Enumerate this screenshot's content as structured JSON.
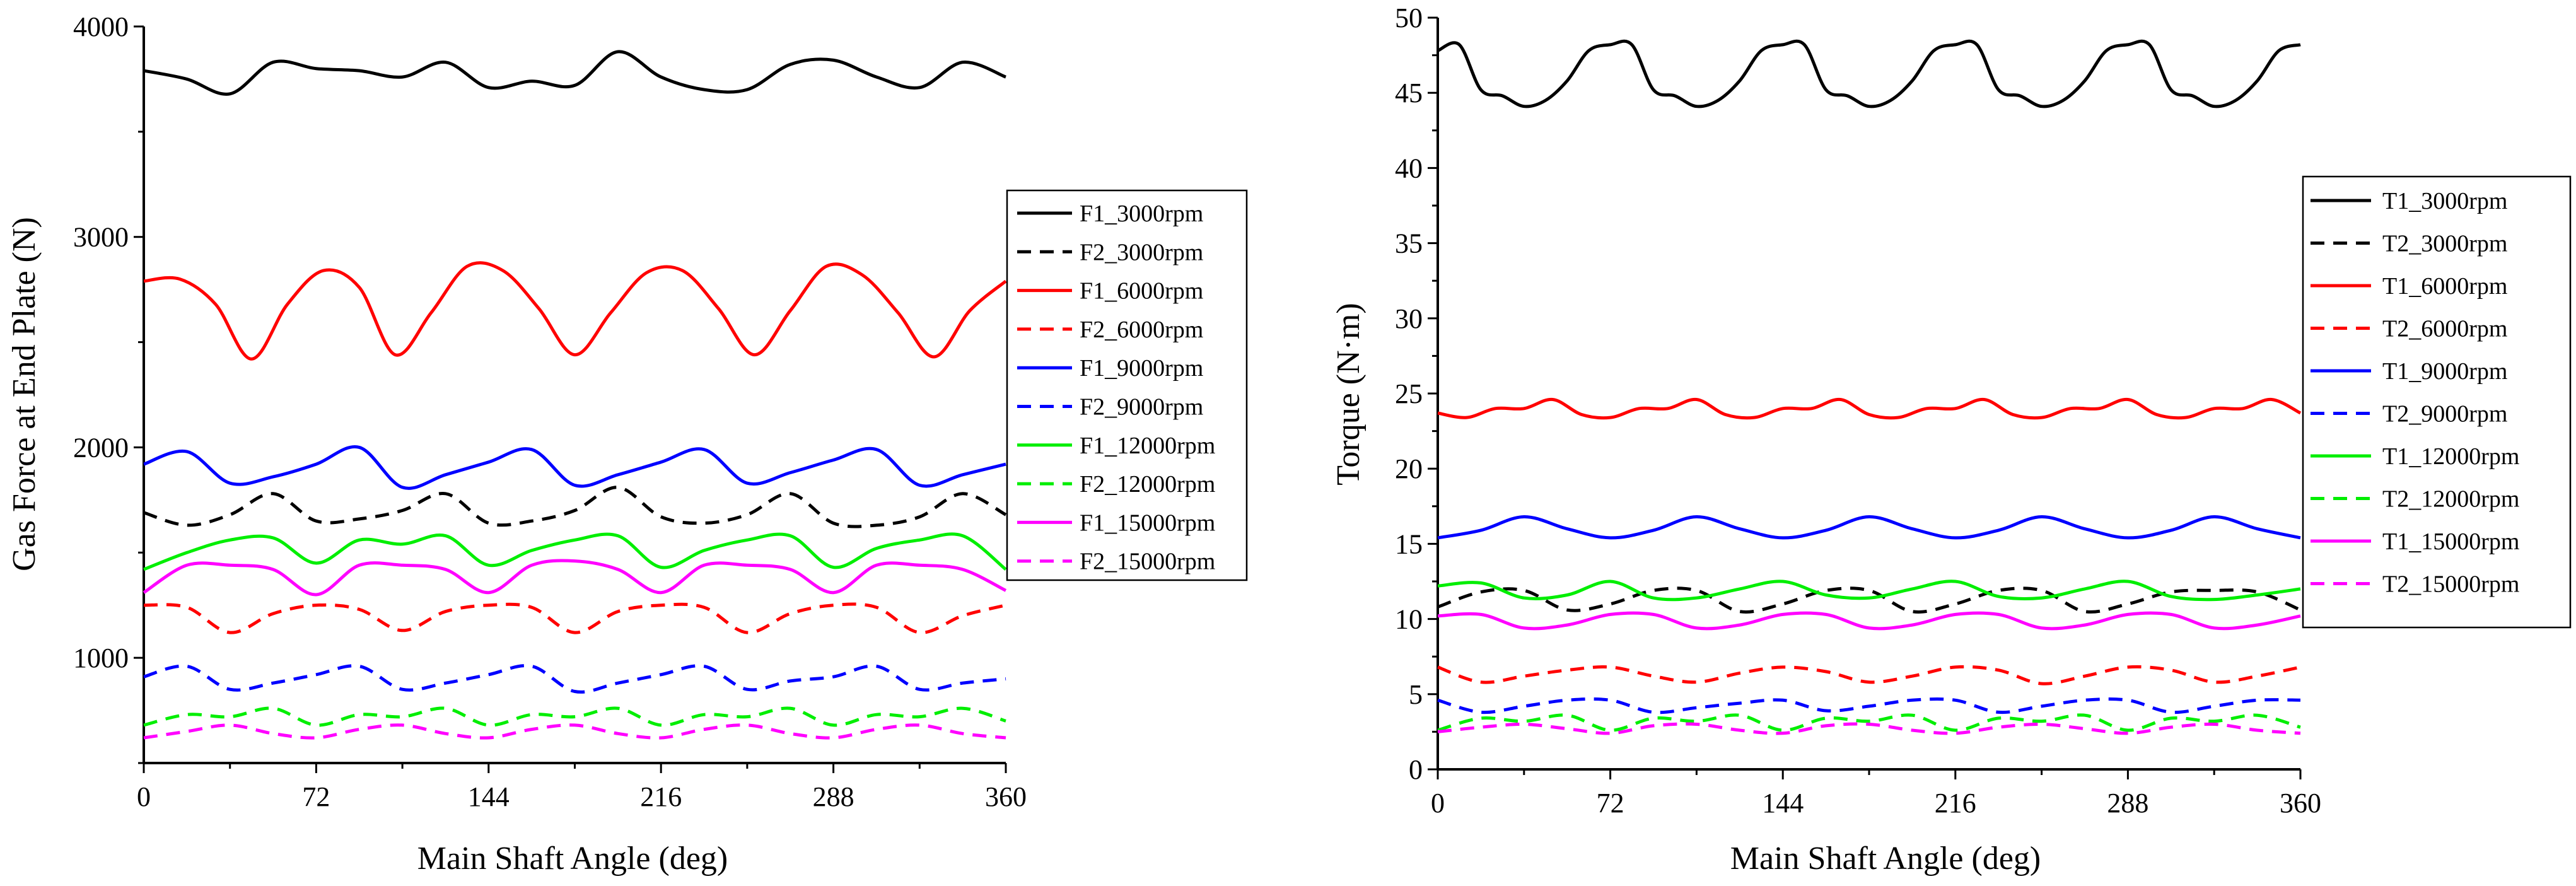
{
  "chart_data": [
    {
      "type": "line",
      "title": "",
      "xlabel": "Main Shaft Angle (deg)",
      "ylabel": "Gas Force at End Plate (N)",
      "xlim": [
        0,
        360
      ],
      "ylim": [
        500,
        4000
      ],
      "xticks": [
        0,
        72,
        144,
        216,
        288,
        360
      ],
      "yticks": [
        1000,
        2000,
        3000,
        4000
      ],
      "legend_position": "right",
      "series": [
        {
          "name": "F1_3000rpm",
          "color": "#000000",
          "dash": "solid",
          "x": [
            0,
            18,
            36,
            54,
            72,
            90,
            108,
            126,
            144,
            162,
            180,
            198,
            216,
            234,
            252,
            270,
            288,
            306,
            324,
            342,
            360
          ],
          "y": [
            3790,
            3750,
            3680,
            3830,
            3800,
            3790,
            3760,
            3830,
            3710,
            3740,
            3720,
            3880,
            3760,
            3700,
            3700,
            3820,
            3840,
            3760,
            3710,
            3830,
            3760
          ]
        },
        {
          "name": "F2_3000rpm",
          "color": "#000000",
          "dash": "dashed",
          "x": [
            0,
            18,
            36,
            54,
            72,
            90,
            108,
            126,
            144,
            162,
            180,
            198,
            216,
            234,
            252,
            270,
            288,
            306,
            324,
            342,
            360
          ],
          "y": [
            1690,
            1630,
            1680,
            1780,
            1650,
            1660,
            1700,
            1780,
            1640,
            1650,
            1700,
            1810,
            1670,
            1640,
            1680,
            1780,
            1640,
            1630,
            1670,
            1780,
            1680
          ]
        },
        {
          "name": "F1_6000rpm",
          "color": "#FF0000",
          "dash": "solid",
          "x": [
            0,
            15,
            30,
            45,
            60,
            75,
            90,
            105,
            120,
            135,
            150,
            165,
            180,
            195,
            210,
            225,
            240,
            255,
            270,
            285,
            300,
            315,
            330,
            345,
            360
          ],
          "y": [
            2790,
            2800,
            2680,
            2420,
            2680,
            2840,
            2760,
            2440,
            2640,
            2860,
            2840,
            2660,
            2440,
            2640,
            2830,
            2840,
            2660,
            2440,
            2650,
            2860,
            2820,
            2640,
            2430,
            2650,
            2790
          ]
        },
        {
          "name": "F2_6000rpm",
          "color": "#FF0000",
          "dash": "dashed",
          "x": [
            0,
            18,
            36,
            54,
            72,
            90,
            108,
            126,
            144,
            162,
            180,
            198,
            216,
            234,
            252,
            270,
            288,
            306,
            324,
            342,
            360
          ],
          "y": [
            1250,
            1240,
            1120,
            1210,
            1250,
            1230,
            1130,
            1220,
            1250,
            1240,
            1120,
            1220,
            1250,
            1240,
            1120,
            1210,
            1250,
            1240,
            1120,
            1200,
            1250
          ]
        },
        {
          "name": "F1_9000rpm",
          "color": "#0000FF",
          "dash": "solid",
          "x": [
            0,
            18,
            36,
            54,
            72,
            90,
            108,
            126,
            144,
            162,
            180,
            198,
            216,
            234,
            252,
            270,
            288,
            306,
            324,
            342,
            360
          ],
          "y": [
            1920,
            1980,
            1830,
            1860,
            1920,
            2000,
            1810,
            1870,
            1930,
            1990,
            1820,
            1870,
            1930,
            1990,
            1830,
            1880,
            1940,
            1990,
            1820,
            1870,
            1920
          ]
        },
        {
          "name": "F2_9000rpm",
          "color": "#0000FF",
          "dash": "dashed",
          "x": [
            0,
            18,
            36,
            54,
            72,
            90,
            108,
            126,
            144,
            162,
            180,
            198,
            216,
            234,
            252,
            270,
            288,
            306,
            324,
            342,
            360
          ],
          "y": [
            910,
            960,
            850,
            880,
            920,
            960,
            850,
            880,
            920,
            960,
            840,
            880,
            920,
            960,
            850,
            890,
            910,
            960,
            850,
            880,
            900
          ]
        },
        {
          "name": "F1_12000rpm",
          "color": "#00EE00",
          "dash": "solid",
          "x": [
            0,
            18,
            36,
            54,
            72,
            90,
            108,
            126,
            144,
            162,
            180,
            198,
            216,
            234,
            252,
            270,
            288,
            306,
            324,
            342,
            360
          ],
          "y": [
            1420,
            1500,
            1560,
            1570,
            1450,
            1560,
            1540,
            1580,
            1440,
            1510,
            1560,
            1580,
            1430,
            1510,
            1560,
            1580,
            1430,
            1520,
            1560,
            1580,
            1420
          ]
        },
        {
          "name": "F2_12000rpm",
          "color": "#00EE00",
          "dash": "dashed",
          "x": [
            0,
            18,
            36,
            54,
            72,
            90,
            108,
            126,
            144,
            162,
            180,
            198,
            216,
            234,
            252,
            270,
            288,
            306,
            324,
            342,
            360
          ],
          "y": [
            680,
            730,
            720,
            760,
            680,
            730,
            720,
            760,
            680,
            730,
            720,
            760,
            680,
            730,
            720,
            760,
            680,
            730,
            720,
            760,
            700
          ]
        },
        {
          "name": "F1_15000rpm",
          "color": "#FF00FF",
          "dash": "solid",
          "x": [
            0,
            18,
            36,
            54,
            72,
            90,
            108,
            126,
            144,
            162,
            180,
            198,
            216,
            234,
            252,
            270,
            288,
            306,
            324,
            342,
            360
          ],
          "y": [
            1310,
            1440,
            1440,
            1420,
            1300,
            1440,
            1440,
            1420,
            1310,
            1440,
            1460,
            1420,
            1310,
            1440,
            1440,
            1420,
            1310,
            1440,
            1440,
            1420,
            1320
          ]
        },
        {
          "name": "F2_15000rpm",
          "color": "#FF00FF",
          "dash": "dashed",
          "x": [
            0,
            18,
            36,
            54,
            72,
            90,
            108,
            126,
            144,
            162,
            180,
            198,
            216,
            234,
            252,
            270,
            288,
            306,
            324,
            342,
            360
          ],
          "y": [
            620,
            650,
            680,
            640,
            620,
            660,
            680,
            640,
            620,
            660,
            680,
            640,
            620,
            660,
            680,
            640,
            620,
            660,
            680,
            640,
            620
          ]
        }
      ]
    },
    {
      "type": "line",
      "title": "",
      "xlabel": "Main Shaft Angle (deg)",
      "ylabel": "Torque (N·m)",
      "xlim": [
        0,
        360
      ],
      "ylim": [
        0,
        50
      ],
      "xticks": [
        0,
        72,
        144,
        216,
        288,
        360
      ],
      "yticks": [
        0,
        5,
        10,
        15,
        20,
        25,
        30,
        35,
        40,
        45,
        50
      ],
      "legend_position": "right",
      "series": [
        {
          "name": "T1_3000rpm",
          "color": "#000000",
          "dash": "solid",
          "x": [
            0,
            9,
            18,
            27,
            36,
            45,
            54,
            63,
            72,
            81,
            90,
            99,
            108,
            117,
            126,
            135,
            144,
            153,
            162,
            171,
            180,
            189,
            198,
            207,
            216,
            225,
            234,
            243,
            252,
            261,
            270,
            279,
            288,
            297,
            306,
            315,
            324,
            333,
            342,
            351,
            360
          ],
          "y": [
            47.8,
            48.2,
            45.2,
            44.8,
            44.1,
            44.5,
            45.8,
            47.8,
            48.2,
            48.2,
            45.2,
            44.8,
            44.1,
            44.5,
            45.8,
            47.8,
            48.2,
            48.2,
            45.2,
            44.8,
            44.1,
            44.5,
            45.8,
            47.8,
            48.2,
            48.2,
            45.2,
            44.8,
            44.1,
            44.5,
            45.8,
            47.8,
            48.2,
            48.2,
            45.2,
            44.8,
            44.1,
            44.5,
            45.8,
            47.8,
            48.2
          ]
        },
        {
          "name": "T2_3000rpm",
          "color": "#000000",
          "dash": "dashed",
          "x": [
            0,
            18,
            36,
            54,
            72,
            90,
            108,
            126,
            144,
            162,
            180,
            198,
            216,
            234,
            252,
            270,
            288,
            306,
            324,
            342,
            360
          ],
          "y": [
            10.8,
            11.8,
            11.9,
            10.6,
            11.0,
            11.9,
            11.9,
            10.5,
            11.0,
            11.9,
            11.9,
            10.5,
            11.0,
            11.9,
            11.9,
            10.5,
            11.0,
            11.8,
            11.9,
            11.8,
            10.6
          ]
        },
        {
          "name": "T1_6000rpm",
          "color": "#FF0000",
          "dash": "solid",
          "x": [
            0,
            12,
            24,
            36,
            48,
            60,
            72,
            84,
            96,
            108,
            120,
            132,
            144,
            156,
            168,
            180,
            192,
            204,
            216,
            228,
            240,
            252,
            264,
            276,
            288,
            300,
            312,
            324,
            336,
            348,
            360
          ],
          "y": [
            23.7,
            23.4,
            24.0,
            24.0,
            24.6,
            23.6,
            23.4,
            24.0,
            24.0,
            24.6,
            23.6,
            23.4,
            24.0,
            24.0,
            24.6,
            23.6,
            23.4,
            24.0,
            24.0,
            24.6,
            23.6,
            23.4,
            24.0,
            24.0,
            24.6,
            23.6,
            23.4,
            24.0,
            24.0,
            24.6,
            23.7
          ]
        },
        {
          "name": "T2_6000rpm",
          "color": "#FF0000",
          "dash": "dashed",
          "x": [
            0,
            18,
            36,
            54,
            72,
            90,
            108,
            126,
            144,
            162,
            180,
            198,
            216,
            234,
            252,
            270,
            288,
            306,
            324,
            342,
            360
          ],
          "y": [
            6.8,
            5.8,
            6.2,
            6.6,
            6.8,
            6.2,
            5.8,
            6.4,
            6.8,
            6.5,
            5.8,
            6.2,
            6.8,
            6.6,
            5.7,
            6.2,
            6.8,
            6.6,
            5.8,
            6.2,
            6.8
          ]
        },
        {
          "name": "T1_9000rpm",
          "color": "#0000FF",
          "dash": "solid",
          "x": [
            0,
            18,
            36,
            54,
            72,
            90,
            108,
            126,
            144,
            162,
            180,
            198,
            216,
            234,
            252,
            270,
            288,
            306,
            324,
            342,
            360
          ],
          "y": [
            15.4,
            15.9,
            16.8,
            16.0,
            15.4,
            15.9,
            16.8,
            16.0,
            15.4,
            15.9,
            16.8,
            16.0,
            15.4,
            15.9,
            16.8,
            16.0,
            15.4,
            15.9,
            16.8,
            16.0,
            15.4
          ]
        },
        {
          "name": "T2_9000rpm",
          "color": "#0000FF",
          "dash": "dashed",
          "x": [
            0,
            18,
            36,
            54,
            72,
            90,
            108,
            126,
            144,
            162,
            180,
            198,
            216,
            234,
            252,
            270,
            288,
            306,
            324,
            342,
            360
          ],
          "y": [
            4.6,
            3.8,
            4.2,
            4.6,
            4.6,
            3.8,
            4.1,
            4.4,
            4.6,
            3.9,
            4.2,
            4.6,
            4.6,
            3.8,
            4.2,
            4.6,
            4.6,
            3.8,
            4.2,
            4.6,
            4.6
          ]
        },
        {
          "name": "T1_12000rpm",
          "color": "#00EE00",
          "dash": "solid",
          "x": [
            0,
            18,
            36,
            54,
            72,
            90,
            108,
            126,
            144,
            162,
            180,
            198,
            216,
            234,
            252,
            270,
            288,
            306,
            324,
            342,
            360
          ],
          "y": [
            12.2,
            12.4,
            11.4,
            11.6,
            12.5,
            11.4,
            11.4,
            12.0,
            12.5,
            11.6,
            11.4,
            12.0,
            12.5,
            11.5,
            11.4,
            12.0,
            12.5,
            11.5,
            11.3,
            11.6,
            12.0
          ]
        },
        {
          "name": "T2_12000rpm",
          "color": "#00EE00",
          "dash": "dashed",
          "x": [
            0,
            18,
            36,
            54,
            72,
            90,
            108,
            126,
            144,
            162,
            180,
            198,
            216,
            234,
            252,
            270,
            288,
            306,
            324,
            342,
            360
          ],
          "y": [
            2.6,
            3.4,
            3.2,
            3.6,
            2.6,
            3.4,
            3.2,
            3.6,
            2.6,
            3.4,
            3.2,
            3.6,
            2.6,
            3.4,
            3.2,
            3.6,
            2.6,
            3.4,
            3.2,
            3.6,
            2.8
          ]
        },
        {
          "name": "T1_15000rpm",
          "color": "#FF00FF",
          "dash": "solid",
          "x": [
            0,
            18,
            36,
            54,
            72,
            90,
            108,
            126,
            144,
            162,
            180,
            198,
            216,
            234,
            252,
            270,
            288,
            306,
            324,
            342,
            360
          ],
          "y": [
            10.2,
            10.3,
            9.4,
            9.6,
            10.3,
            10.3,
            9.4,
            9.6,
            10.3,
            10.3,
            9.4,
            9.6,
            10.3,
            10.3,
            9.4,
            9.6,
            10.3,
            10.3,
            9.4,
            9.6,
            10.2
          ]
        },
        {
          "name": "T2_15000rpm",
          "color": "#FF00FF",
          "dash": "dashed",
          "x": [
            0,
            18,
            36,
            54,
            72,
            90,
            108,
            126,
            144,
            162,
            180,
            198,
            216,
            234,
            252,
            270,
            288,
            306,
            324,
            342,
            360
          ],
          "y": [
            2.5,
            2.8,
            3.0,
            2.7,
            2.4,
            2.9,
            3.0,
            2.6,
            2.4,
            2.9,
            3.0,
            2.6,
            2.4,
            2.8,
            3.0,
            2.7,
            2.4,
            2.8,
            3.0,
            2.6,
            2.4
          ]
        }
      ]
    }
  ]
}
